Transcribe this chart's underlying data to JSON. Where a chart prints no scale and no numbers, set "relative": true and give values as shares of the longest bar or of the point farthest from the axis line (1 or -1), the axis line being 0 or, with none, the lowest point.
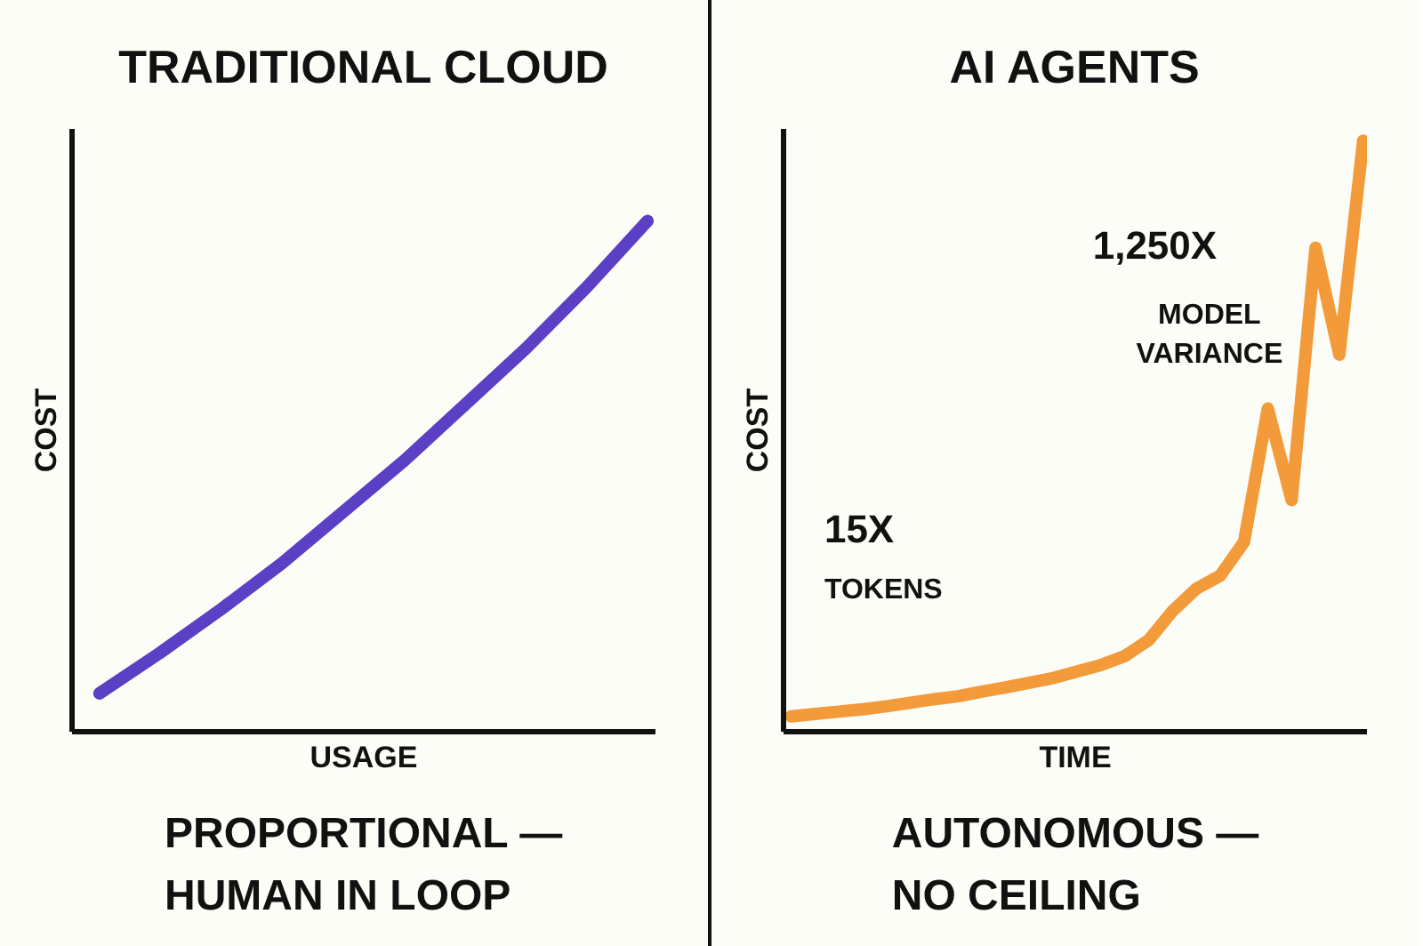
{
  "chart_data": [
    {
      "type": "line",
      "title": "TRADITIONAL CLOUD",
      "xlabel": "USAGE",
      "ylabel": "COST",
      "relative": true,
      "categories": [
        null,
        null,
        null,
        null,
        null,
        null,
        null,
        null,
        null,
        null
      ],
      "series": [
        {
          "color": "#5b3fc4",
          "values": [
            0.075,
            0.155,
            0.24,
            0.33,
            0.43,
            0.53,
            0.64,
            0.75,
            0.87,
            1.0
          ]
        }
      ],
      "annotations": [
        "PROPORTIONAL —\nHUMAN IN LOOP"
      ]
    },
    {
      "type": "line",
      "title": "AI AGENTS",
      "xlabel": "TIME",
      "ylabel": "COST",
      "relative": true,
      "categories": [
        null,
        null,
        null,
        null,
        null,
        null,
        null,
        null,
        null,
        null,
        null,
        null,
        null,
        null,
        null,
        null,
        null,
        null,
        null,
        null,
        null,
        null,
        null,
        null,
        null
      ],
      "series": [
        {
          "color": "#f39a3a",
          "values": [
            0.026,
            0.03,
            0.034,
            0.038,
            0.043,
            0.049,
            0.055,
            0.06,
            0.068,
            0.075,
            0.083,
            0.091,
            0.102,
            0.113,
            0.128,
            0.155,
            0.204,
            0.242,
            0.264,
            0.321,
            0.547,
            0.392,
            0.819,
            0.638,
            1.0
          ]
        }
      ],
      "annotations": [
        "15X",
        "TOKENS",
        "1,250X",
        "MODEL\nVARIANCE",
        "AUTONOMOUS —\nNO CEILING"
      ]
    }
  ]
}
